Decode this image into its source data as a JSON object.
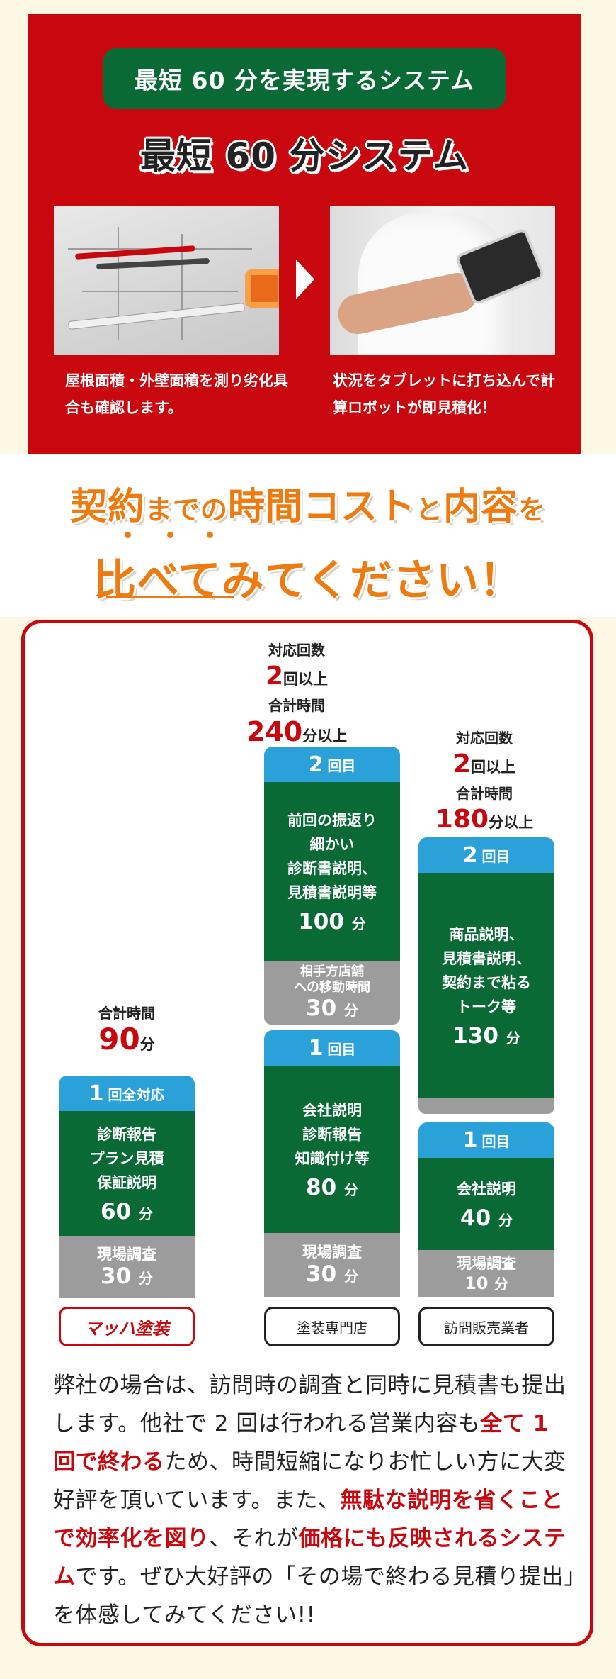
{
  "top": {
    "pill": "最短 60 分を実現するシステム",
    "title": "最短 60 分システム",
    "caption_left": "屋根面積・外壁面積を測り劣化具合も確認します。",
    "caption_right": "状況をタブレットに打ち込んで計算ロボットが即見積化！"
  },
  "heading": {
    "line1_a": "契約",
    "line1_b": "までの",
    "line1_c": "時間コスト",
    "line1_d": "と",
    "line1_e": "内容",
    "line1_f": "を",
    "line2": "比べてみてください！"
  },
  "comparison": {
    "col1": {
      "summary_label": "合計時間",
      "summary_value": "90",
      "summary_unit": "分",
      "header_num": "1",
      "header_text": "回全対応",
      "green_lines": [
        "診断報告",
        "プラン見積",
        "保証説明"
      ],
      "green_value": "60",
      "green_unit": "分",
      "gray_label": "現場調査",
      "gray_value": "30",
      "gray_unit": "分",
      "vendor": "マッハ塗装"
    },
    "col2": {
      "count_label": "対応回数",
      "count_value": "2",
      "count_unit": "回以上",
      "summary_label": "合計時間",
      "summary_value": "240",
      "summary_unit": "分以上",
      "b2_header_num": "2",
      "b2_header_text": "回目",
      "b2_lines": [
        "前回の振返り",
        "細かい",
        "診断書説明、",
        "見積書説明等"
      ],
      "b2_value": "100",
      "b2_unit": "分",
      "b2_gray_lines": [
        "相手方店舗",
        "への移動時間"
      ],
      "b2_gray_value": "30",
      "b2_gray_unit": "分",
      "b1_header_num": "1",
      "b1_header_text": "回目",
      "b1_lines": [
        "会社説明",
        "診断報告",
        "知識付け等"
      ],
      "b1_value": "80",
      "b1_unit": "分",
      "b1_gray_label": "現場調査",
      "b1_gray_value": "30",
      "b1_gray_unit": "分",
      "vendor": "塗装専門店"
    },
    "col3": {
      "count_label": "対応回数",
      "count_value": "2",
      "count_unit": "回以上",
      "summary_label": "合計時間",
      "summary_value": "180",
      "summary_unit": "分以上",
      "b2_header_num": "2",
      "b2_header_text": "回目",
      "b2_lines": [
        "商品説明、",
        "見積書説明、",
        "契約まで粘る",
        "トーク等"
      ],
      "b2_value": "130",
      "b2_unit": "分",
      "b1_header_num": "1",
      "b1_header_text": "回目",
      "b1_lines": [
        "会社説明"
      ],
      "b1_value": "40",
      "b1_unit": "分",
      "b1_gray_label": "現場調査",
      "b1_gray_value": "10",
      "b1_gray_unit": "分",
      "vendor": "訪問販売業者"
    },
    "body": {
      "p1": "弊社の場合は、訪問時の調査と同時に見積書も提出します。他社で 2 回は行われる営業内容も",
      "e1": "全て 1 回で終わる",
      "p2": "ため、時間短縮になりお忙しい方に大変好評を頂いています。また、",
      "e2": "無駄な説明を省くことで効率化を図り",
      "p3": "、それが",
      "e3": "価格にも反映されるシステム",
      "p4": "です。ぜひ大好評の「その場で終わる見積り提出」を体感してみてください!!"
    }
  },
  "colors": {
    "brand_red": "#c8070f",
    "green": "#0a6a35",
    "blue": "#2aa2d9",
    "gray": "#9c9c9c",
    "orange": "#ee7a10"
  }
}
